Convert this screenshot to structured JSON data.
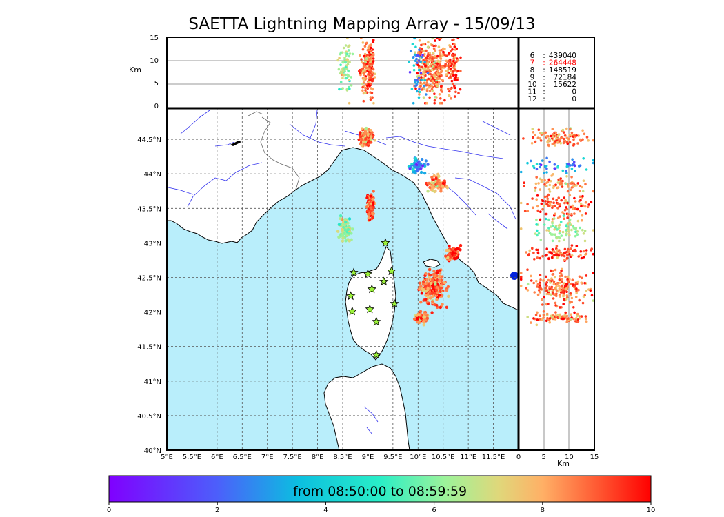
{
  "chart_data": {
    "type": "scatter",
    "title": "SAETTA Lightning Mapping Array - 15/09/13",
    "colorbar_label": "from 08:50:00 to 08:59:59",
    "colorbar": {
      "range": [
        0,
        10
      ],
      "ticks": [
        "0",
        "2",
        "4",
        "6",
        "8",
        "10"
      ]
    },
    "alt_panel": {
      "ylabel": "Km",
      "yticks": [
        "0",
        "5",
        "10",
        "15"
      ],
      "ylim": [
        0,
        15
      ]
    },
    "side_panel": {
      "xlabel": "Km",
      "xticks": [
        "0",
        "5",
        "10",
        "15"
      ],
      "xlim": [
        0,
        15
      ]
    },
    "map": {
      "lon_ticks": [
        "5°E",
        "5.5°E",
        "6°E",
        "6.5°E",
        "7°E",
        "7.5°E",
        "8°E",
        "8.5°E",
        "9°E",
        "9.5°E",
        "10°E",
        "10.5°E",
        "11°E",
        "11.5°E"
      ],
      "lat_ticks": [
        "40°N",
        "40.5°N",
        "41°N",
        "41.5°N",
        "42°N",
        "42.5°N",
        "43°N",
        "43.5°N",
        "44°N",
        "44.5°N"
      ],
      "lon_range": [
        5,
        12
      ],
      "lat_range": [
        40,
        44.95
      ],
      "stations": [
        {
          "lon": 9.35,
          "lat": 43.0
        },
        {
          "lon": 8.72,
          "lat": 42.57
        },
        {
          "lon": 9.0,
          "lat": 42.55
        },
        {
          "lon": 9.47,
          "lat": 42.59
        },
        {
          "lon": 9.32,
          "lat": 42.44
        },
        {
          "lon": 9.08,
          "lat": 42.33
        },
        {
          "lon": 8.66,
          "lat": 42.23
        },
        {
          "lon": 9.53,
          "lat": 42.12
        },
        {
          "lon": 8.69,
          "lat": 42.01
        },
        {
          "lon": 9.04,
          "lat": 42.04
        },
        {
          "lon": 9.17,
          "lat": 41.86
        },
        {
          "lon": 9.17,
          "lat": 41.38
        }
      ],
      "clusters": [
        {
          "lon": 8.97,
          "lat": 44.53,
          "sx": 0.1,
          "sy": 0.1,
          "t": 8.5,
          "n": 110
        },
        {
          "lon": 9.05,
          "lat": 43.53,
          "sx": 0.06,
          "sy": 0.14,
          "t": 9.0,
          "n": 100
        },
        {
          "lon": 8.55,
          "lat": 43.2,
          "sx": 0.1,
          "sy": 0.14,
          "t": 6.5,
          "n": 80
        },
        {
          "lon": 10.3,
          "lat": 42.35,
          "sx": 0.2,
          "sy": 0.2,
          "t": 8.8,
          "n": 190
        },
        {
          "lon": 10.06,
          "lat": 41.92,
          "sx": 0.1,
          "sy": 0.06,
          "t": 8.6,
          "n": 80
        },
        {
          "lon": 10.7,
          "lat": 42.85,
          "sx": 0.1,
          "sy": 0.08,
          "t": 9.1,
          "n": 90
        },
        {
          "lon": 10.4,
          "lat": 43.85,
          "sx": 0.15,
          "sy": 0.09,
          "t": 8.2,
          "n": 70
        },
        {
          "lon": 10.0,
          "lat": 44.1,
          "sx": 0.12,
          "sy": 0.1,
          "t": 2.8,
          "n": 45
        }
      ]
    },
    "counts": [
      {
        "label": "6",
        "value": "439040",
        "highlight": false
      },
      {
        "label": "7",
        "value": "264448",
        "highlight": true
      },
      {
        "label": "8",
        "value": "148519",
        "highlight": false
      },
      {
        "label": "9",
        "value": "72184",
        "highlight": false
      },
      {
        "label": "10",
        "value": "15622",
        "highlight": false
      },
      {
        "label": "11",
        "value": "0",
        "highlight": false
      },
      {
        "label": "12",
        "value": "0",
        "highlight": false
      }
    ],
    "colors": {
      "sea": "#b9eefb",
      "land": "#ffffff",
      "coast": "#000000",
      "river": "#3333ee",
      "grid": "#555555",
      "station": "#9cf23a",
      "highlight": "#ff0000"
    }
  }
}
